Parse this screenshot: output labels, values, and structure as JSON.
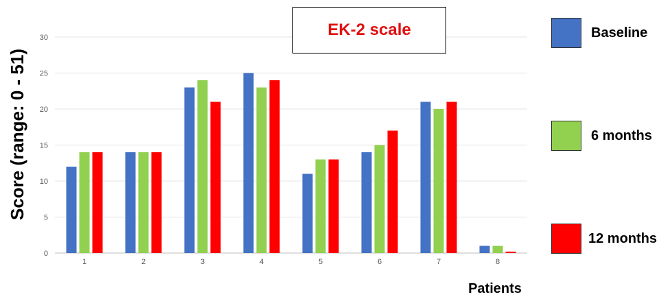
{
  "chart_data": {
    "type": "bar",
    "title": "EK-2 scale",
    "xlabel": "Patients",
    "ylabel": "Score (range: 0 - 51)",
    "categories": [
      "1",
      "2",
      "3",
      "4",
      "5",
      "6",
      "7",
      "8"
    ],
    "yticks": [
      "0",
      "5",
      "10",
      "15",
      "20",
      "25",
      "30"
    ],
    "ylim": [
      0,
      30
    ],
    "grid": true,
    "legend_position": "right",
    "series": [
      {
        "name": "Baseline",
        "color": "#4472C4",
        "values": [
          12,
          14,
          23,
          25,
          11,
          14,
          21,
          1
        ]
      },
      {
        "name": "6 months",
        "color": "#92D050",
        "values": [
          14,
          14,
          24,
          23,
          13,
          15,
          20,
          1
        ]
      },
      {
        "name": "12 months",
        "color": "#FF0000",
        "values": [
          14,
          14,
          21,
          24,
          13,
          17,
          21,
          0.2
        ]
      }
    ],
    "title_color": "#E01010"
  }
}
